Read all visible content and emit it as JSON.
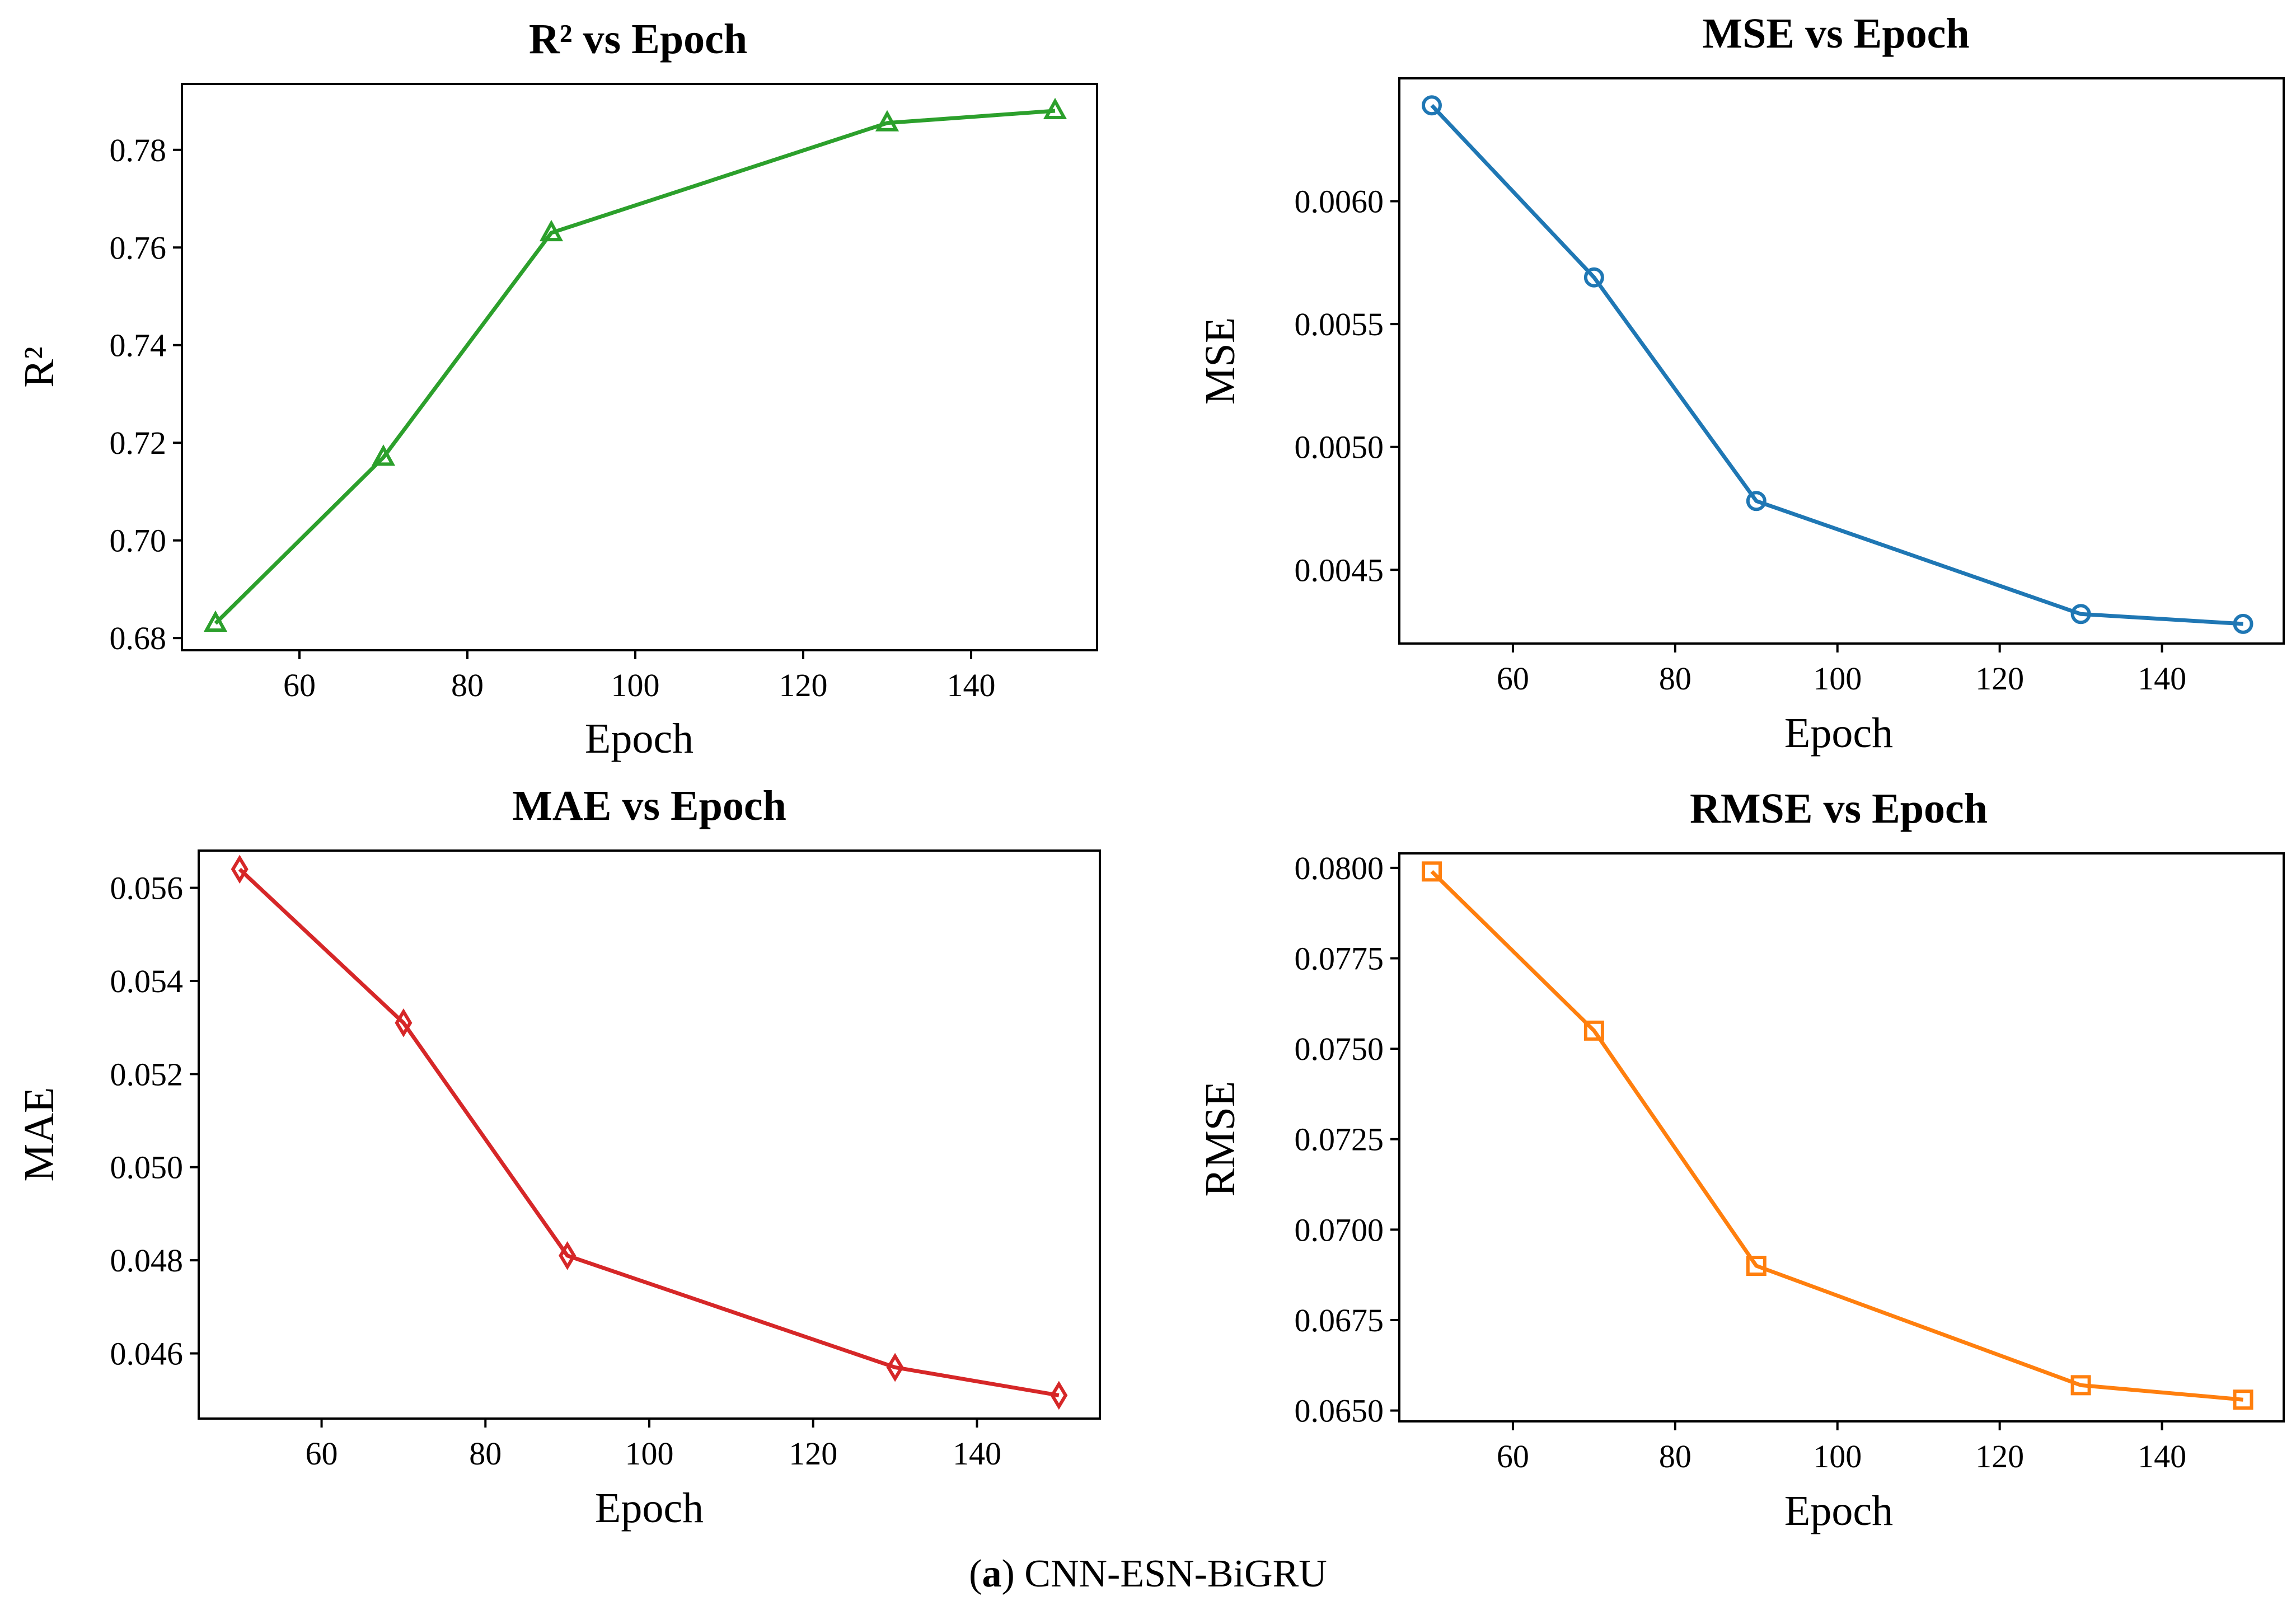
{
  "caption": {
    "letter": "a",
    "open": "(",
    "close": ")",
    "text": " CNN-ESN-BiGRU"
  },
  "chart_data": [
    {
      "type": "line",
      "title": "R² vs Epoch",
      "xlabel": "Epoch",
      "ylabel": "R²",
      "marker": "triangle",
      "color": "#2ca02c",
      "x": [
        50,
        70,
        90,
        130,
        150
      ],
      "values": [
        0.683,
        0.717,
        0.763,
        0.7855,
        0.788
      ],
      "xlim": [
        46,
        155
      ],
      "ylim": [
        0.6775,
        0.7935
      ],
      "xticks": [
        60,
        80,
        100,
        120,
        140
      ],
      "yticks": [
        0.68,
        0.7,
        0.72,
        0.74,
        0.76,
        0.78
      ],
      "xtick_labels": [
        "60",
        "80",
        "100",
        "120",
        "140"
      ],
      "ytick_labels": [
        "0.68",
        "0.70",
        "0.72",
        "0.74",
        "0.76",
        "0.78"
      ]
    },
    {
      "type": "line",
      "title": "MSE vs Epoch",
      "xlabel": "Epoch",
      "ylabel": "MSE",
      "marker": "circle",
      "color": "#1f77b4",
      "x": [
        50,
        70,
        90,
        130,
        150
      ],
      "values": [
        0.00639,
        0.00569,
        0.00478,
        0.00432,
        0.00428
      ],
      "xlim": [
        46,
        155
      ],
      "ylim": [
        0.0042,
        0.0065
      ],
      "xticks": [
        60,
        80,
        100,
        120,
        140
      ],
      "yticks": [
        0.0045,
        0.005,
        0.0055,
        0.006
      ],
      "xtick_labels": [
        "60",
        "80",
        "100",
        "120",
        "140"
      ],
      "ytick_labels": [
        "0.0045",
        "0.0050",
        "0.0055",
        "0.0060"
      ]
    },
    {
      "type": "line",
      "title": "MAE vs Epoch",
      "xlabel": "Epoch",
      "ylabel": "MAE",
      "marker": "diamond",
      "color": "#d62728",
      "x": [
        50,
        70,
        90,
        130,
        150
      ],
      "values": [
        0.0564,
        0.0531,
        0.0481,
        0.0457,
        0.0451
      ],
      "xlim": [
        45,
        155
      ],
      "ylim": [
        0.0446,
        0.0568
      ],
      "xticks": [
        60,
        80,
        100,
        120,
        140
      ],
      "yticks": [
        0.046,
        0.048,
        0.05,
        0.052,
        0.054,
        0.056
      ],
      "xtick_labels": [
        "60",
        "80",
        "100",
        "120",
        "140"
      ],
      "ytick_labels": [
        "0.046",
        "0.048",
        "0.050",
        "0.052",
        "0.054",
        "0.056"
      ]
    },
    {
      "type": "line",
      "title": "RMSE vs Epoch",
      "xlabel": "Epoch",
      "ylabel": "RMSE",
      "marker": "square",
      "color": "#ff7f0e",
      "x": [
        50,
        70,
        90,
        130,
        150
      ],
      "values": [
        0.0799,
        0.0755,
        0.069,
        0.0657,
        0.0653
      ],
      "xlim": [
        46,
        155
      ],
      "ylim": [
        0.0647,
        0.0804
      ],
      "xticks": [
        60,
        80,
        100,
        120,
        140
      ],
      "yticks": [
        0.065,
        0.0675,
        0.07,
        0.0725,
        0.075,
        0.0775,
        0.08
      ],
      "xtick_labels": [
        "60",
        "80",
        "100",
        "120",
        "140"
      ],
      "ytick_labels": [
        "0.0650",
        "0.0675",
        "0.0700",
        "0.0725",
        "0.0750",
        "0.0775",
        "0.0800"
      ]
    }
  ]
}
